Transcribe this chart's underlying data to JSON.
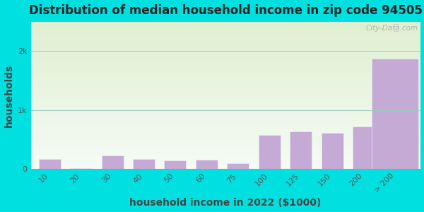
{
  "title": "Distribution of median household income in zip code 94505",
  "xlabel": "household income in 2022 ($1000)",
  "ylabel": "households",
  "background_outer": "#00e0e0",
  "background_inner_top": "#dff0d0",
  "background_inner_bottom": "#f5fbf5",
  "bar_color": "#c4aad4",
  "bar_edge_color": "#e8e8f8",
  "categories": [
    "10",
    "20",
    "30",
    "40",
    "50",
    "60",
    "75",
    "100",
    "125",
    "150",
    "200",
    "> 200"
  ],
  "values": [
    170,
    18,
    230,
    165,
    140,
    160,
    95,
    575,
    635,
    610,
    720,
    1870
  ],
  "ylim": [
    0,
    2500
  ],
  "yticks": [
    0,
    1000,
    2000
  ],
  "ytick_labels": [
    "0",
    "1k",
    "2k"
  ],
  "title_fontsize": 12,
  "label_fontsize": 10,
  "tick_fontsize": 8,
  "watermark_text": "City-Data.com",
  "bar_widths": [
    0.7,
    0.7,
    0.7,
    0.7,
    0.7,
    0.7,
    0.7,
    0.7,
    0.7,
    0.7,
    0.7,
    1.5
  ]
}
